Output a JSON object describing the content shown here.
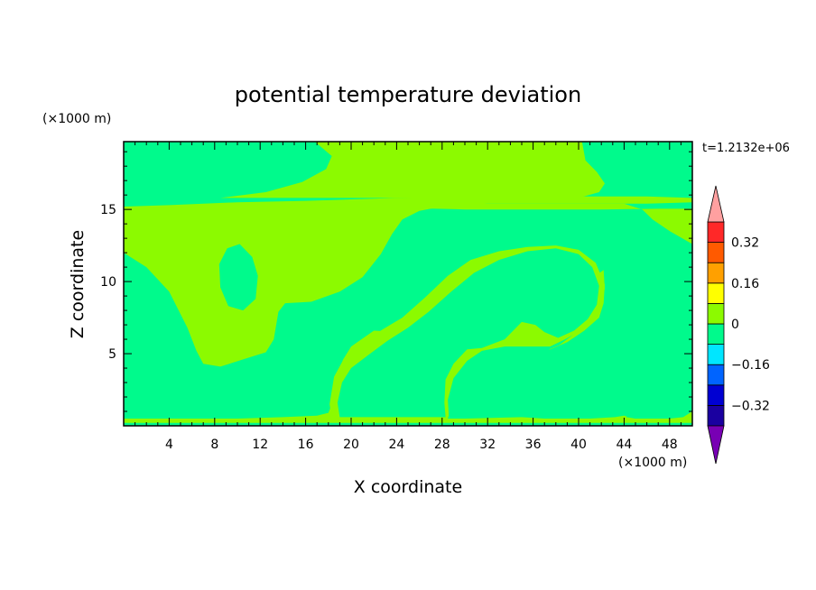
{
  "chart_data": {
    "type": "heatmap",
    "title": "potential temperature deviation",
    "xlabel": "X coordinate",
    "ylabel": "Z coordinate",
    "x_unit": "(×1000 m)",
    "y_unit": "(×1000 m)",
    "time_label": "t=1.2132e+06",
    "xlim": [
      0,
      50
    ],
    "ylim": [
      0,
      19.7
    ],
    "x_ticks": [
      4,
      8,
      12,
      16,
      20,
      24,
      28,
      32,
      36,
      40,
      44,
      48
    ],
    "y_ticks": [
      5,
      10,
      15
    ],
    "colorbar": {
      "levels": [
        -0.4,
        -0.32,
        -0.24,
        -0.16,
        -0.08,
        0,
        0.08,
        0.16,
        0.24,
        0.32,
        0.4
      ],
      "labels": [
        "0.32",
        "0.16",
        "0",
        "−0.16",
        "−0.32"
      ],
      "label_values": [
        0.32,
        0.16,
        0,
        -0.16,
        -0.32
      ],
      "colors": [
        "#5d00b4",
        "#1a00a0",
        "#0000d2",
        "#0064ff",
        "#00e6ff",
        "#00fa8c",
        "#8cfa00",
        "#ffff00",
        "#ffa000",
        "#ff5a00",
        "#ff2828"
      ],
      "over_color": "#ffa0a0",
      "under_color": "#7800b4"
    },
    "field": {
      "background_color": "#00fa8c",
      "regions": [
        {
          "color": "#8cfa00",
          "points": [
            [
              0,
              12.0
            ],
            [
              2,
              11.0
            ],
            [
              4,
              9.3
            ],
            [
              5.6,
              6.8
            ],
            [
              6.4,
              5.2
            ],
            [
              7,
              4.3
            ],
            [
              8.5,
              4.1
            ],
            [
              10.5,
              4.6
            ],
            [
              12.5,
              5.1
            ],
            [
              13.2,
              6.0
            ],
            [
              13.6,
              7.9
            ],
            [
              14.2,
              8.5
            ],
            [
              16.5,
              8.6
            ],
            [
              19,
              9.3
            ],
            [
              21,
              10.3
            ],
            [
              22.6,
              11.9
            ],
            [
              23.6,
              13.3
            ],
            [
              24.5,
              14.3
            ],
            [
              26,
              14.9
            ],
            [
              28,
              15.2
            ],
            [
              32,
              15.4
            ],
            [
              40,
              15.4
            ],
            [
              46,
              15.4
            ],
            [
              50,
              15.5
            ],
            [
              50,
              15.8
            ],
            [
              46,
              15.9
            ],
            [
              40,
              15.9
            ],
            [
              30,
              15.9
            ],
            [
              24,
              15.8
            ],
            [
              16,
              15.6
            ],
            [
              10,
              15.5
            ],
            [
              4,
              15.3
            ],
            [
              0,
              15.2
            ]
          ]
        },
        {
          "color": "#8cfa00",
          "points": [
            [
              18,
              15.05
            ],
            [
              25,
              15.1
            ],
            [
              30,
              15.0
            ],
            [
              35,
              15.0
            ],
            [
              42,
              15.0
            ],
            [
              47,
              15.05
            ],
            [
              50,
              15.05
            ],
            [
              50,
              12.6
            ],
            [
              48,
              13.5
            ],
            [
              46.5,
              14.3
            ],
            [
              45.6,
              15.0
            ],
            [
              44,
              15.4
            ],
            [
              38,
              15.4
            ],
            [
              32,
              15.4
            ],
            [
              26,
              15.3
            ],
            [
              20,
              15.2
            ],
            [
              18,
              15.05
            ]
          ]
        },
        {
          "color": "#00fa8c",
          "points": [
            [
              8.4,
              11.2
            ],
            [
              9.1,
              12.3
            ],
            [
              10.2,
              12.6
            ],
            [
              11.3,
              11.7
            ],
            [
              11.8,
              10.4
            ],
            [
              11.6,
              8.8
            ],
            [
              10.5,
              8.0
            ],
            [
              9.2,
              8.3
            ],
            [
              8.5,
              9.6
            ]
          ]
        },
        {
          "color": "#8cfa00",
          "points": [
            [
              16.8,
              19.7
            ],
            [
              18.3,
              18.7
            ],
            [
              17.8,
              17.8
            ],
            [
              15.7,
              16.9
            ],
            [
              12.5,
              16.2
            ],
            [
              8.5,
              15.8
            ],
            [
              30,
              15.8
            ],
            [
              40,
              15.8
            ],
            [
              41.8,
              16.2
            ],
            [
              42.3,
              16.8
            ],
            [
              41.6,
              17.6
            ],
            [
              40.6,
              18.4
            ],
            [
              40.3,
              19.7
            ]
          ]
        },
        {
          "color": "#8cfa00",
          "points": [
            [
              0,
              0.2
            ],
            [
              50,
              0.2
            ],
            [
              50,
              1.0
            ],
            [
              49.2,
              0.6
            ],
            [
              48,
              0.5
            ],
            [
              45,
              0.5
            ],
            [
              44,
              0.7
            ],
            [
              43.2,
              0.6
            ],
            [
              41,
              0.5
            ],
            [
              37,
              0.5
            ],
            [
              35,
              0.6
            ],
            [
              30,
              0.5
            ],
            [
              28.5,
              0.5
            ],
            [
              28.2,
              1.0
            ],
            [
              28.5,
              3.0
            ],
            [
              29.5,
              4.4
            ],
            [
              31,
              5.6
            ],
            [
              33,
              6.0
            ],
            [
              35,
              5.8
            ],
            [
              37,
              5.4
            ],
            [
              38.5,
              5.9
            ],
            [
              39.2,
              7.0
            ],
            [
              40.3,
              8.9
            ],
            [
              41.5,
              10.4
            ],
            [
              42.2,
              10.8
            ],
            [
              42.3,
              9.5
            ],
            [
              41.8,
              8.2
            ],
            [
              40.6,
              7.0
            ],
            [
              39.2,
              6.4
            ],
            [
              38,
              6.0
            ],
            [
              37,
              5.9
            ],
            [
              36,
              6.3
            ],
            [
              35,
              6.9
            ],
            [
              34,
              7.5
            ],
            [
              30.5,
              6.5
            ],
            [
              29.3,
              5.5
            ],
            [
              28.5,
              4.0
            ],
            [
              27,
              5.2
            ],
            [
              24.5,
              6.5
            ],
            [
              22,
              6.6
            ],
            [
              20,
              5.5
            ],
            [
              19.3,
              4.6
            ],
            [
              18.6,
              3.2
            ],
            [
              18.3,
              1.5
            ],
            [
              18,
              0.9
            ],
            [
              17,
              0.7
            ],
            [
              14,
              0.6
            ],
            [
              10,
              0.5
            ],
            [
              6,
              0.5
            ],
            [
              3,
              0.5
            ],
            [
              0,
              0.5
            ]
          ]
        },
        {
          "color": "#8cfa00",
          "points": [
            [
              18.3,
              0.5
            ],
            [
              18.1,
              1.5
            ],
            [
              18.5,
              3.4
            ],
            [
              19.4,
              4.7
            ],
            [
              21,
              5.8
            ],
            [
              22.8,
              6.7
            ],
            [
              24.5,
              7.5
            ],
            [
              26.5,
              8.9
            ],
            [
              28.5,
              10.4
            ],
            [
              30.5,
              11.5
            ],
            [
              33,
              12.1
            ],
            [
              35.5,
              12.4
            ],
            [
              38,
              12.5
            ],
            [
              40,
              12.2
            ],
            [
              41.5,
              11.3
            ],
            [
              42.3,
              9.8
            ],
            [
              42.2,
              8.5
            ],
            [
              41.8,
              7.5
            ],
            [
              40.5,
              6.6
            ],
            [
              39,
              5.8
            ],
            [
              37.5,
              5.3
            ],
            [
              35.5,
              5.2
            ],
            [
              33.5,
              5.1
            ],
            [
              31.5,
              5.0
            ],
            [
              30.2,
              4.4
            ],
            [
              29.3,
              3.1
            ],
            [
              28.9,
              1.5
            ],
            [
              28.5,
              0.5
            ]
          ]
        },
        {
          "color": "#00fa8c",
          "points": [
            [
              19.0,
              0.6
            ],
            [
              18.8,
              1.6
            ],
            [
              19.2,
              3.0
            ],
            [
              20.0,
              4.0
            ],
            [
              21.5,
              4.9
            ],
            [
              23.2,
              5.9
            ],
            [
              25,
              6.8
            ],
            [
              26.8,
              7.9
            ],
            [
              28.8,
              9.3
            ],
            [
              30.8,
              10.6
            ],
            [
              33,
              11.5
            ],
            [
              35.5,
              12.1
            ],
            [
              38,
              12.3
            ],
            [
              40,
              11.9
            ],
            [
              41.2,
              11.0
            ],
            [
              41.8,
              9.7
            ],
            [
              41.6,
              8.4
            ],
            [
              40.8,
              7.4
            ],
            [
              39.6,
              6.6
            ],
            [
              38.2,
              6.1
            ],
            [
              37,
              6.5
            ],
            [
              36.2,
              7.0
            ],
            [
              35,
              7.2
            ],
            [
              33.5,
              6.0
            ],
            [
              31.5,
              5.4
            ],
            [
              30.2,
              5.3
            ],
            [
              29,
              4.3
            ],
            [
              28.3,
              3.2
            ],
            [
              28.2,
              1.6
            ],
            [
              28.3,
              0.6
            ]
          ]
        },
        {
          "color": "#00fa8c",
          "points": [
            [
              28.6,
              0.6
            ],
            [
              28.5,
              1.8
            ],
            [
              29.0,
              3.3
            ],
            [
              30.2,
              4.5
            ],
            [
              31.5,
              5.2
            ],
            [
              33.5,
              5.5
            ],
            [
              35.5,
              5.5
            ],
            [
              37.5,
              5.5
            ],
            [
              38.8,
              6.0
            ],
            [
              39.5,
              6.3
            ],
            [
              38.3,
              5.6
            ],
            [
              36.8,
              5.1
            ],
            [
              35,
              5.0
            ],
            [
              33,
              5.0
            ],
            [
              31.6,
              4.8
            ],
            [
              30.4,
              4.2
            ],
            [
              29.6,
              3.0
            ],
            [
              29.1,
              1.6
            ],
            [
              28.9,
              0.6
            ]
          ]
        },
        {
          "color": "#00fa8c",
          "points": [
            [
              44.2,
              0.6
            ],
            [
              44.4,
              2.2
            ],
            [
              44.9,
              3.6
            ],
            [
              46,
              5.0
            ],
            [
              47.5,
              5.7
            ],
            [
              48.8,
              5.6
            ],
            [
              49.6,
              5.0
            ],
            [
              50,
              4.6
            ],
            [
              50,
              1.0
            ],
            [
              49.2,
              0.7
            ],
            [
              48,
              0.5
            ],
            [
              46,
              0.5
            ],
            [
              45,
              0.5
            ]
          ]
        }
      ]
    }
  }
}
